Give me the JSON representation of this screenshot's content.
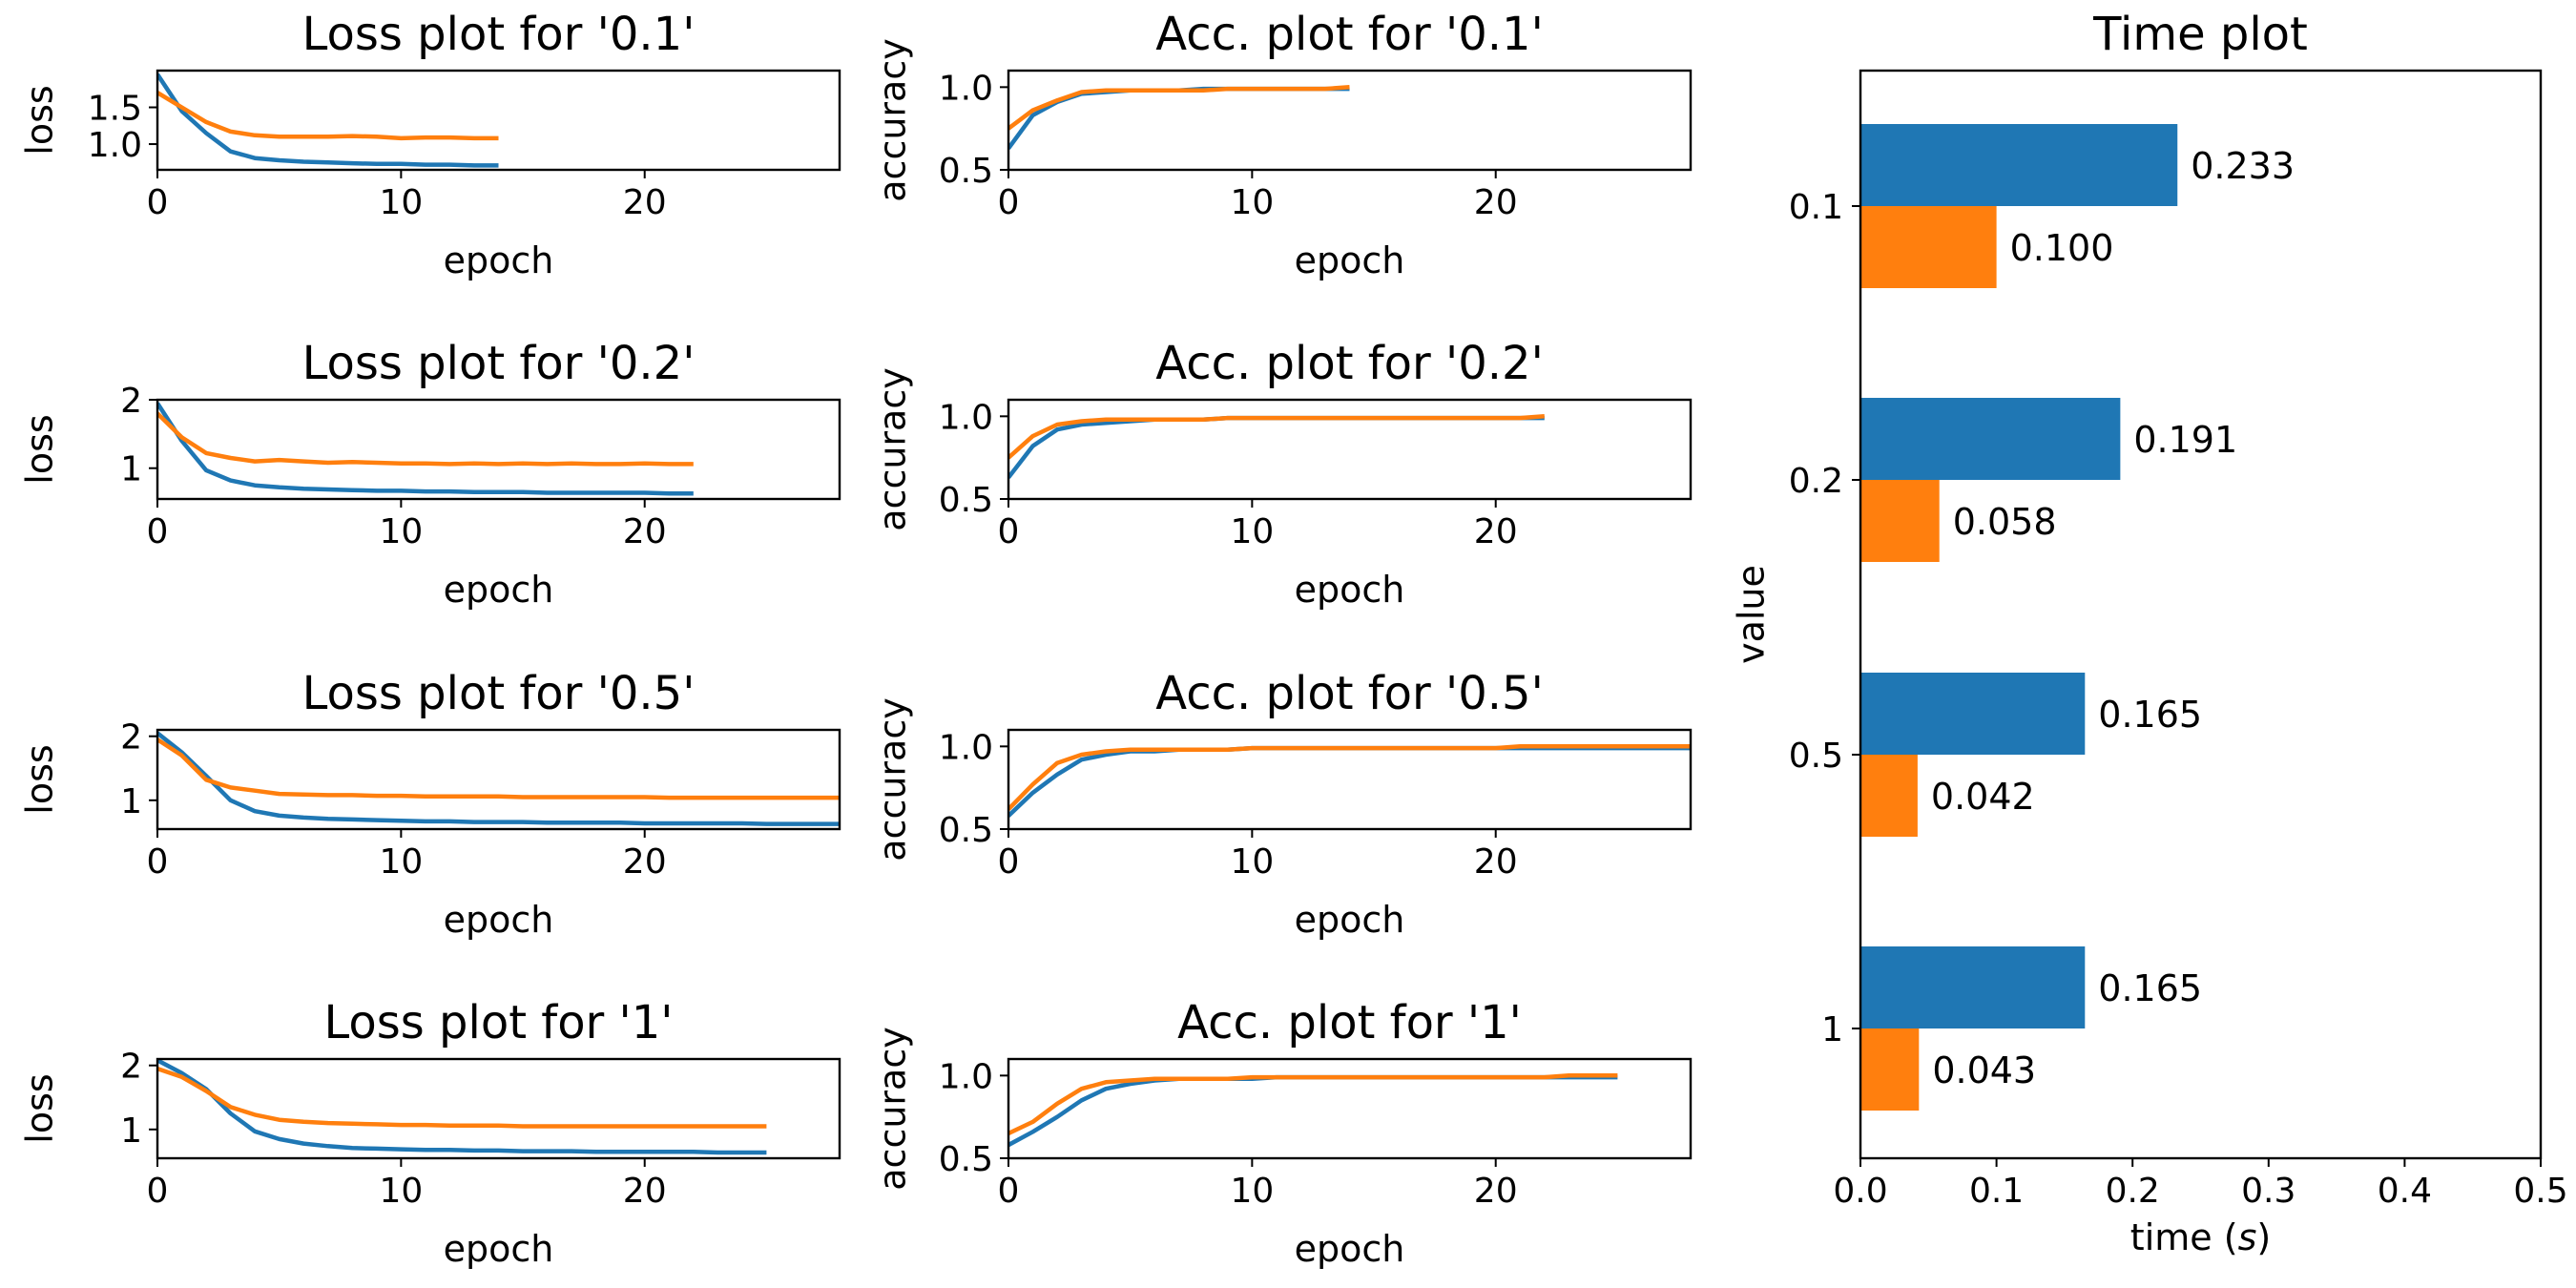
{
  "colors": {
    "train": "#1f77b4",
    "val": "#ff7f0e"
  },
  "chart_data": [
    {
      "type": "line",
      "id": "loss-0.1",
      "title": "Loss plot for '0.1'",
      "xlabel": "epoch",
      "ylabel": "loss",
      "xlim": [
        0,
        28
      ],
      "ylim": [
        0.65,
        2.0
      ],
      "xticks": [
        0,
        10,
        20
      ],
      "yticks": [
        1.0,
        1.5
      ],
      "ytick_labels": [
        "1.0",
        "1.5"
      ],
      "series": [
        {
          "color": "train",
          "values": [
            1.95,
            1.45,
            1.15,
            0.9,
            0.81,
            0.78,
            0.76,
            0.75,
            0.74,
            0.73,
            0.73,
            0.72,
            0.72,
            0.71,
            0.71
          ]
        },
        {
          "color": "val",
          "values": [
            1.7,
            1.5,
            1.3,
            1.17,
            1.12,
            1.1,
            1.1,
            1.1,
            1.11,
            1.1,
            1.08,
            1.09,
            1.09,
            1.08,
            1.08
          ]
        }
      ]
    },
    {
      "type": "line",
      "id": "acc-0.1",
      "title": "Acc. plot for '0.1'",
      "xlabel": "epoch",
      "ylabel": "accuracy",
      "xlim": [
        0,
        28
      ],
      "ylim": [
        0.5,
        1.1
      ],
      "xticks": [
        0,
        10,
        20
      ],
      "yticks": [
        0.5,
        1.0
      ],
      "ytick_labels": [
        "0.5",
        "1.0"
      ],
      "series": [
        {
          "color": "train",
          "values": [
            0.63,
            0.83,
            0.91,
            0.96,
            0.97,
            0.98,
            0.98,
            0.98,
            0.99,
            0.99,
            0.99,
            0.99,
            0.99,
            0.99,
            0.99
          ]
        },
        {
          "color": "val",
          "values": [
            0.75,
            0.86,
            0.92,
            0.97,
            0.98,
            0.98,
            0.98,
            0.98,
            0.98,
            0.99,
            0.99,
            0.99,
            0.99,
            0.99,
            1.0
          ]
        }
      ]
    },
    {
      "type": "line",
      "id": "loss-0.2",
      "title": "Loss plot for '0.2'",
      "xlabel": "epoch",
      "ylabel": "loss",
      "xlim": [
        0,
        28
      ],
      "ylim": [
        0.55,
        2.0
      ],
      "xticks": [
        0,
        10,
        20
      ],
      "yticks": [
        1,
        2
      ],
      "ytick_labels": [
        "1",
        "2"
      ],
      "series": [
        {
          "color": "train",
          "values": [
            1.95,
            1.4,
            0.97,
            0.82,
            0.75,
            0.72,
            0.7,
            0.69,
            0.68,
            0.67,
            0.67,
            0.66,
            0.66,
            0.65,
            0.65,
            0.65,
            0.64,
            0.64,
            0.64,
            0.64,
            0.64,
            0.63,
            0.63
          ]
        },
        {
          "color": "val",
          "values": [
            1.8,
            1.45,
            1.22,
            1.15,
            1.1,
            1.12,
            1.1,
            1.08,
            1.09,
            1.08,
            1.07,
            1.07,
            1.06,
            1.07,
            1.06,
            1.07,
            1.06,
            1.07,
            1.06,
            1.06,
            1.07,
            1.06,
            1.06
          ]
        }
      ]
    },
    {
      "type": "line",
      "id": "acc-0.2",
      "title": "Acc. plot for '0.2'",
      "xlabel": "epoch",
      "ylabel": "accuracy",
      "xlim": [
        0,
        28
      ],
      "ylim": [
        0.5,
        1.1
      ],
      "xticks": [
        0,
        10,
        20
      ],
      "yticks": [
        0.5,
        1.0
      ],
      "ytick_labels": [
        "0.5",
        "1.0"
      ],
      "series": [
        {
          "color": "train",
          "values": [
            0.63,
            0.82,
            0.92,
            0.95,
            0.96,
            0.97,
            0.98,
            0.98,
            0.98,
            0.99,
            0.99,
            0.99,
            0.99,
            0.99,
            0.99,
            0.99,
            0.99,
            0.99,
            0.99,
            0.99,
            0.99,
            0.99,
            0.99
          ]
        },
        {
          "color": "val",
          "values": [
            0.75,
            0.88,
            0.95,
            0.97,
            0.98,
            0.98,
            0.98,
            0.98,
            0.98,
            0.99,
            0.99,
            0.99,
            0.99,
            0.99,
            0.99,
            0.99,
            0.99,
            0.99,
            0.99,
            0.99,
            0.99,
            0.99,
            1.0
          ]
        }
      ]
    },
    {
      "type": "line",
      "id": "loss-0.5",
      "title": "Loss plot for '0.5'",
      "xlabel": "epoch",
      "ylabel": "loss",
      "xlim": [
        0,
        28
      ],
      "ylim": [
        0.55,
        2.1
      ],
      "xticks": [
        0,
        10,
        20
      ],
      "yticks": [
        1,
        2
      ],
      "ytick_labels": [
        "1",
        "2"
      ],
      "series": [
        {
          "color": "train",
          "values": [
            2.05,
            1.75,
            1.38,
            1.0,
            0.83,
            0.76,
            0.73,
            0.71,
            0.7,
            0.69,
            0.68,
            0.67,
            0.67,
            0.66,
            0.66,
            0.66,
            0.65,
            0.65,
            0.65,
            0.65,
            0.64,
            0.64,
            0.64,
            0.64,
            0.64,
            0.63,
            0.63,
            0.63,
            0.63,
            0.63
          ]
        },
        {
          "color": "val",
          "values": [
            1.95,
            1.7,
            1.32,
            1.2,
            1.15,
            1.1,
            1.09,
            1.08,
            1.08,
            1.07,
            1.07,
            1.06,
            1.06,
            1.06,
            1.06,
            1.05,
            1.05,
            1.05,
            1.05,
            1.05,
            1.05,
            1.04,
            1.04,
            1.04,
            1.04,
            1.04,
            1.04,
            1.04,
            1.04,
            1.04
          ]
        }
      ]
    },
    {
      "type": "line",
      "id": "acc-0.5",
      "title": "Acc. plot for '0.5'",
      "xlabel": "epoch",
      "ylabel": "accuracy",
      "xlim": [
        0,
        28
      ],
      "ylim": [
        0.5,
        1.1
      ],
      "xticks": [
        0,
        10,
        20
      ],
      "yticks": [
        0.5,
        1.0
      ],
      "ytick_labels": [
        "0.5",
        "1.0"
      ],
      "series": [
        {
          "color": "train",
          "values": [
            0.58,
            0.72,
            0.83,
            0.92,
            0.95,
            0.97,
            0.97,
            0.98,
            0.98,
            0.98,
            0.99,
            0.99,
            0.99,
            0.99,
            0.99,
            0.99,
            0.99,
            0.99,
            0.99,
            0.99,
            0.99,
            0.99,
            0.99,
            0.99,
            0.99,
            0.99,
            0.99,
            0.99,
            0.99,
            0.99
          ]
        },
        {
          "color": "val",
          "values": [
            0.62,
            0.77,
            0.9,
            0.95,
            0.97,
            0.98,
            0.98,
            0.98,
            0.98,
            0.98,
            0.99,
            0.99,
            0.99,
            0.99,
            0.99,
            0.99,
            0.99,
            0.99,
            0.99,
            0.99,
            0.99,
            1.0,
            1.0,
            1.0,
            1.0,
            1.0,
            1.0,
            1.0,
            1.0,
            1.0
          ]
        }
      ]
    },
    {
      "type": "line",
      "id": "loss-1",
      "title": "Loss plot for '1'",
      "xlabel": "epoch",
      "ylabel": "loss",
      "xlim": [
        0,
        28
      ],
      "ylim": [
        0.55,
        2.1
      ],
      "xticks": [
        0,
        10,
        20
      ],
      "yticks": [
        1,
        2
      ],
      "ytick_labels": [
        "1",
        "2"
      ],
      "series": [
        {
          "color": "train",
          "values": [
            2.08,
            1.88,
            1.63,
            1.25,
            0.97,
            0.85,
            0.78,
            0.74,
            0.71,
            0.7,
            0.69,
            0.68,
            0.68,
            0.67,
            0.67,
            0.66,
            0.66,
            0.66,
            0.65,
            0.65,
            0.65,
            0.65,
            0.65,
            0.64,
            0.64,
            0.64
          ]
        },
        {
          "color": "val",
          "values": [
            1.95,
            1.82,
            1.6,
            1.35,
            1.23,
            1.15,
            1.12,
            1.1,
            1.09,
            1.08,
            1.07,
            1.07,
            1.06,
            1.06,
            1.06,
            1.05,
            1.05,
            1.05,
            1.05,
            1.05,
            1.05,
            1.05,
            1.05,
            1.05,
            1.05,
            1.05
          ]
        }
      ]
    },
    {
      "type": "line",
      "id": "acc-1",
      "title": "Acc. plot for '1'",
      "xlabel": "epoch",
      "ylabel": "accuracy",
      "xlim": [
        0,
        28
      ],
      "ylim": [
        0.5,
        1.1
      ],
      "xticks": [
        0,
        10,
        20
      ],
      "yticks": [
        0.5,
        1.0
      ],
      "ytick_labels": [
        "0.5",
        "1.0"
      ],
      "series": [
        {
          "color": "train",
          "values": [
            0.58,
            0.66,
            0.75,
            0.85,
            0.92,
            0.95,
            0.97,
            0.98,
            0.98,
            0.98,
            0.98,
            0.99,
            0.99,
            0.99,
            0.99,
            0.99,
            0.99,
            0.99,
            0.99,
            0.99,
            0.99,
            0.99,
            0.99,
            0.99,
            0.99,
            0.99
          ]
        },
        {
          "color": "val",
          "values": [
            0.65,
            0.72,
            0.83,
            0.92,
            0.96,
            0.97,
            0.98,
            0.98,
            0.98,
            0.98,
            0.99,
            0.99,
            0.99,
            0.99,
            0.99,
            0.99,
            0.99,
            0.99,
            0.99,
            0.99,
            0.99,
            0.99,
            0.99,
            1.0,
            1.0,
            1.0
          ]
        }
      ]
    },
    {
      "type": "bar",
      "id": "time",
      "orientation": "horizontal",
      "title": "Time plot",
      "xlabel": "time (s)",
      "ylabel": "value",
      "categories": [
        "0.1",
        "0.2",
        "0.5",
        "1"
      ],
      "xlim": [
        0,
        0.5
      ],
      "xticks": [
        0.0,
        0.1,
        0.2,
        0.3,
        0.4,
        0.5
      ],
      "xtick_labels": [
        "0.0",
        "0.1",
        "0.2",
        "0.3",
        "0.4",
        "0.5"
      ],
      "series": [
        {
          "color": "train",
          "values": [
            0.233,
            0.191,
            0.165,
            0.165
          ],
          "labels": [
            "0.233",
            "0.191",
            "0.165",
            "0.165"
          ]
        },
        {
          "color": "val",
          "values": [
            0.1,
            0.058,
            0.042,
            0.043
          ],
          "labels": [
            "0.100",
            "0.058",
            "0.042",
            "0.043"
          ]
        }
      ]
    }
  ]
}
